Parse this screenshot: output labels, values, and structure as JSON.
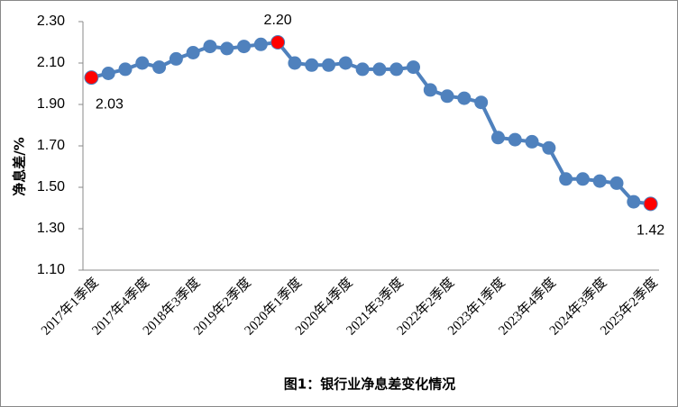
{
  "chart_data": {
    "type": "line",
    "title": "图1：银行业净息差变化情况",
    "y_label": "净息差/%",
    "categories": [
      "2017年1季度",
      null,
      null,
      "2017年4季度",
      null,
      null,
      "2018年3季度",
      null,
      null,
      "2019年2季度",
      null,
      null,
      "2020年1季度",
      null,
      null,
      "2020年4季度",
      null,
      null,
      "2021年3季度",
      null,
      null,
      "2022年2季度",
      null,
      null,
      "2023年1季度",
      null,
      null,
      "2023年4季度",
      null,
      null,
      "2024年3季度",
      null,
      null,
      "2025年2季度"
    ],
    "values": [
      2.03,
      2.05,
      2.07,
      2.1,
      2.08,
      2.12,
      2.15,
      2.18,
      2.17,
      2.18,
      2.19,
      2.2,
      2.1,
      2.09,
      2.09,
      2.1,
      2.07,
      2.07,
      2.07,
      2.08,
      1.97,
      1.94,
      1.93,
      1.91,
      1.74,
      1.73,
      1.72,
      1.69,
      1.54,
      1.54,
      1.53,
      1.52,
      1.43,
      1.42
    ],
    "value_labels": [
      "2.03",
      null,
      null,
      null,
      null,
      null,
      null,
      null,
      null,
      null,
      null,
      "2.20",
      null,
      null,
      null,
      null,
      null,
      null,
      null,
      null,
      null,
      null,
      null,
      null,
      null,
      null,
      null,
      null,
      null,
      null,
      null,
      null,
      null,
      "1.42"
    ],
    "color": "#4f81bd",
    "highlight_color": "#ff0000",
    "ylim": [
      1.1,
      2.3
    ],
    "yticks": [
      {
        "value": 1.1,
        "label": "1.10"
      },
      {
        "value": 1.3,
        "label": "1.30"
      },
      {
        "value": 1.5,
        "label": "1.50"
      },
      {
        "value": 1.7,
        "label": "1.70"
      },
      {
        "value": 1.9,
        "label": "1.90"
      },
      {
        "value": 2.1,
        "label": "2.10"
      },
      {
        "value": 2.3,
        "label": "2.30"
      }
    ],
    "grid": false
  }
}
